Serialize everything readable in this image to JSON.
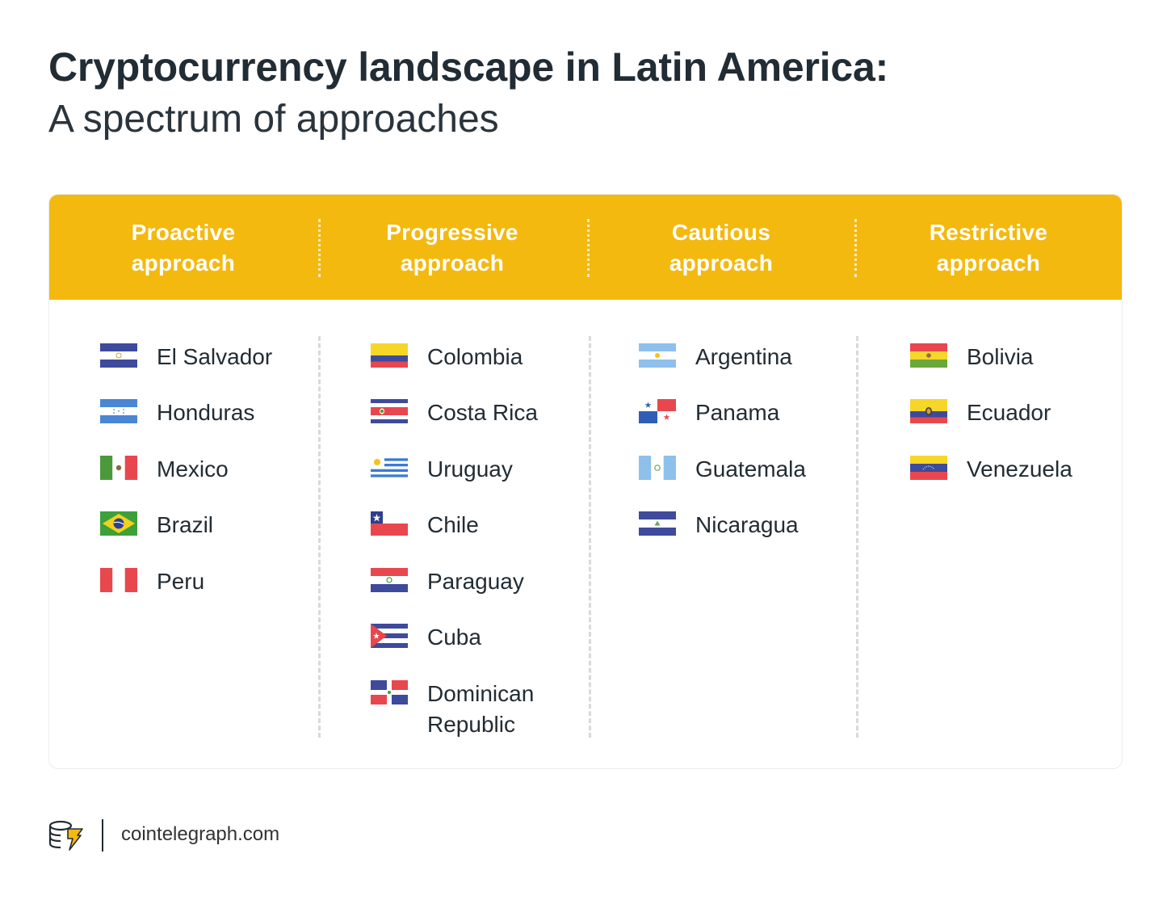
{
  "title": "Cryptocurrency landscape in Latin America:",
  "subtitle": "A spectrum of approaches",
  "categories": [
    {
      "line1": "Proactive",
      "line2": "approach",
      "countries": [
        {
          "name": "El Salvador",
          "flag": "el-salvador-flag"
        },
        {
          "name": "Honduras",
          "flag": "honduras-flag"
        },
        {
          "name": "Mexico",
          "flag": "mexico-flag"
        },
        {
          "name": "Brazil",
          "flag": "brazil-flag"
        },
        {
          "name": "Peru",
          "flag": "peru-flag"
        }
      ]
    },
    {
      "line1": "Progressive",
      "line2": "approach",
      "countries": [
        {
          "name": "Colombia",
          "flag": "colombia-flag"
        },
        {
          "name": "Costa Rica",
          "flag": "costa-rica-flag"
        },
        {
          "name": "Uruguay",
          "flag": "uruguay-flag"
        },
        {
          "name": "Chile",
          "flag": "chile-flag"
        },
        {
          "name": "Paraguay",
          "flag": "paraguay-flag"
        },
        {
          "name": "Cuba",
          "flag": "cuba-flag"
        },
        {
          "name": "Dominican",
          "name2": "Republic",
          "flag": "dominican-republic-flag"
        }
      ]
    },
    {
      "line1": "Cautious",
      "line2": "approach",
      "countries": [
        {
          "name": "Argentina",
          "flag": "argentina-flag"
        },
        {
          "name": "Panama",
          "flag": "panama-flag"
        },
        {
          "name": "Guatemala",
          "flag": "guatemala-flag"
        },
        {
          "name": "Nicaragua",
          "flag": "nicaragua-flag"
        }
      ]
    },
    {
      "line1": "Restrictive",
      "line2": "approach",
      "countries": [
        {
          "name": "Bolivia",
          "flag": "bolivia-flag"
        },
        {
          "name": "Ecuador",
          "flag": "ecuador-flag"
        },
        {
          "name": "Venezuela",
          "flag": "venezuela-flag"
        }
      ]
    }
  ],
  "footer": {
    "site": "cointelegraph.com",
    "logo": "cointelegraph-logo-icon"
  },
  "colors": {
    "header": "#f4b90e",
    "text": "#222c34"
  }
}
